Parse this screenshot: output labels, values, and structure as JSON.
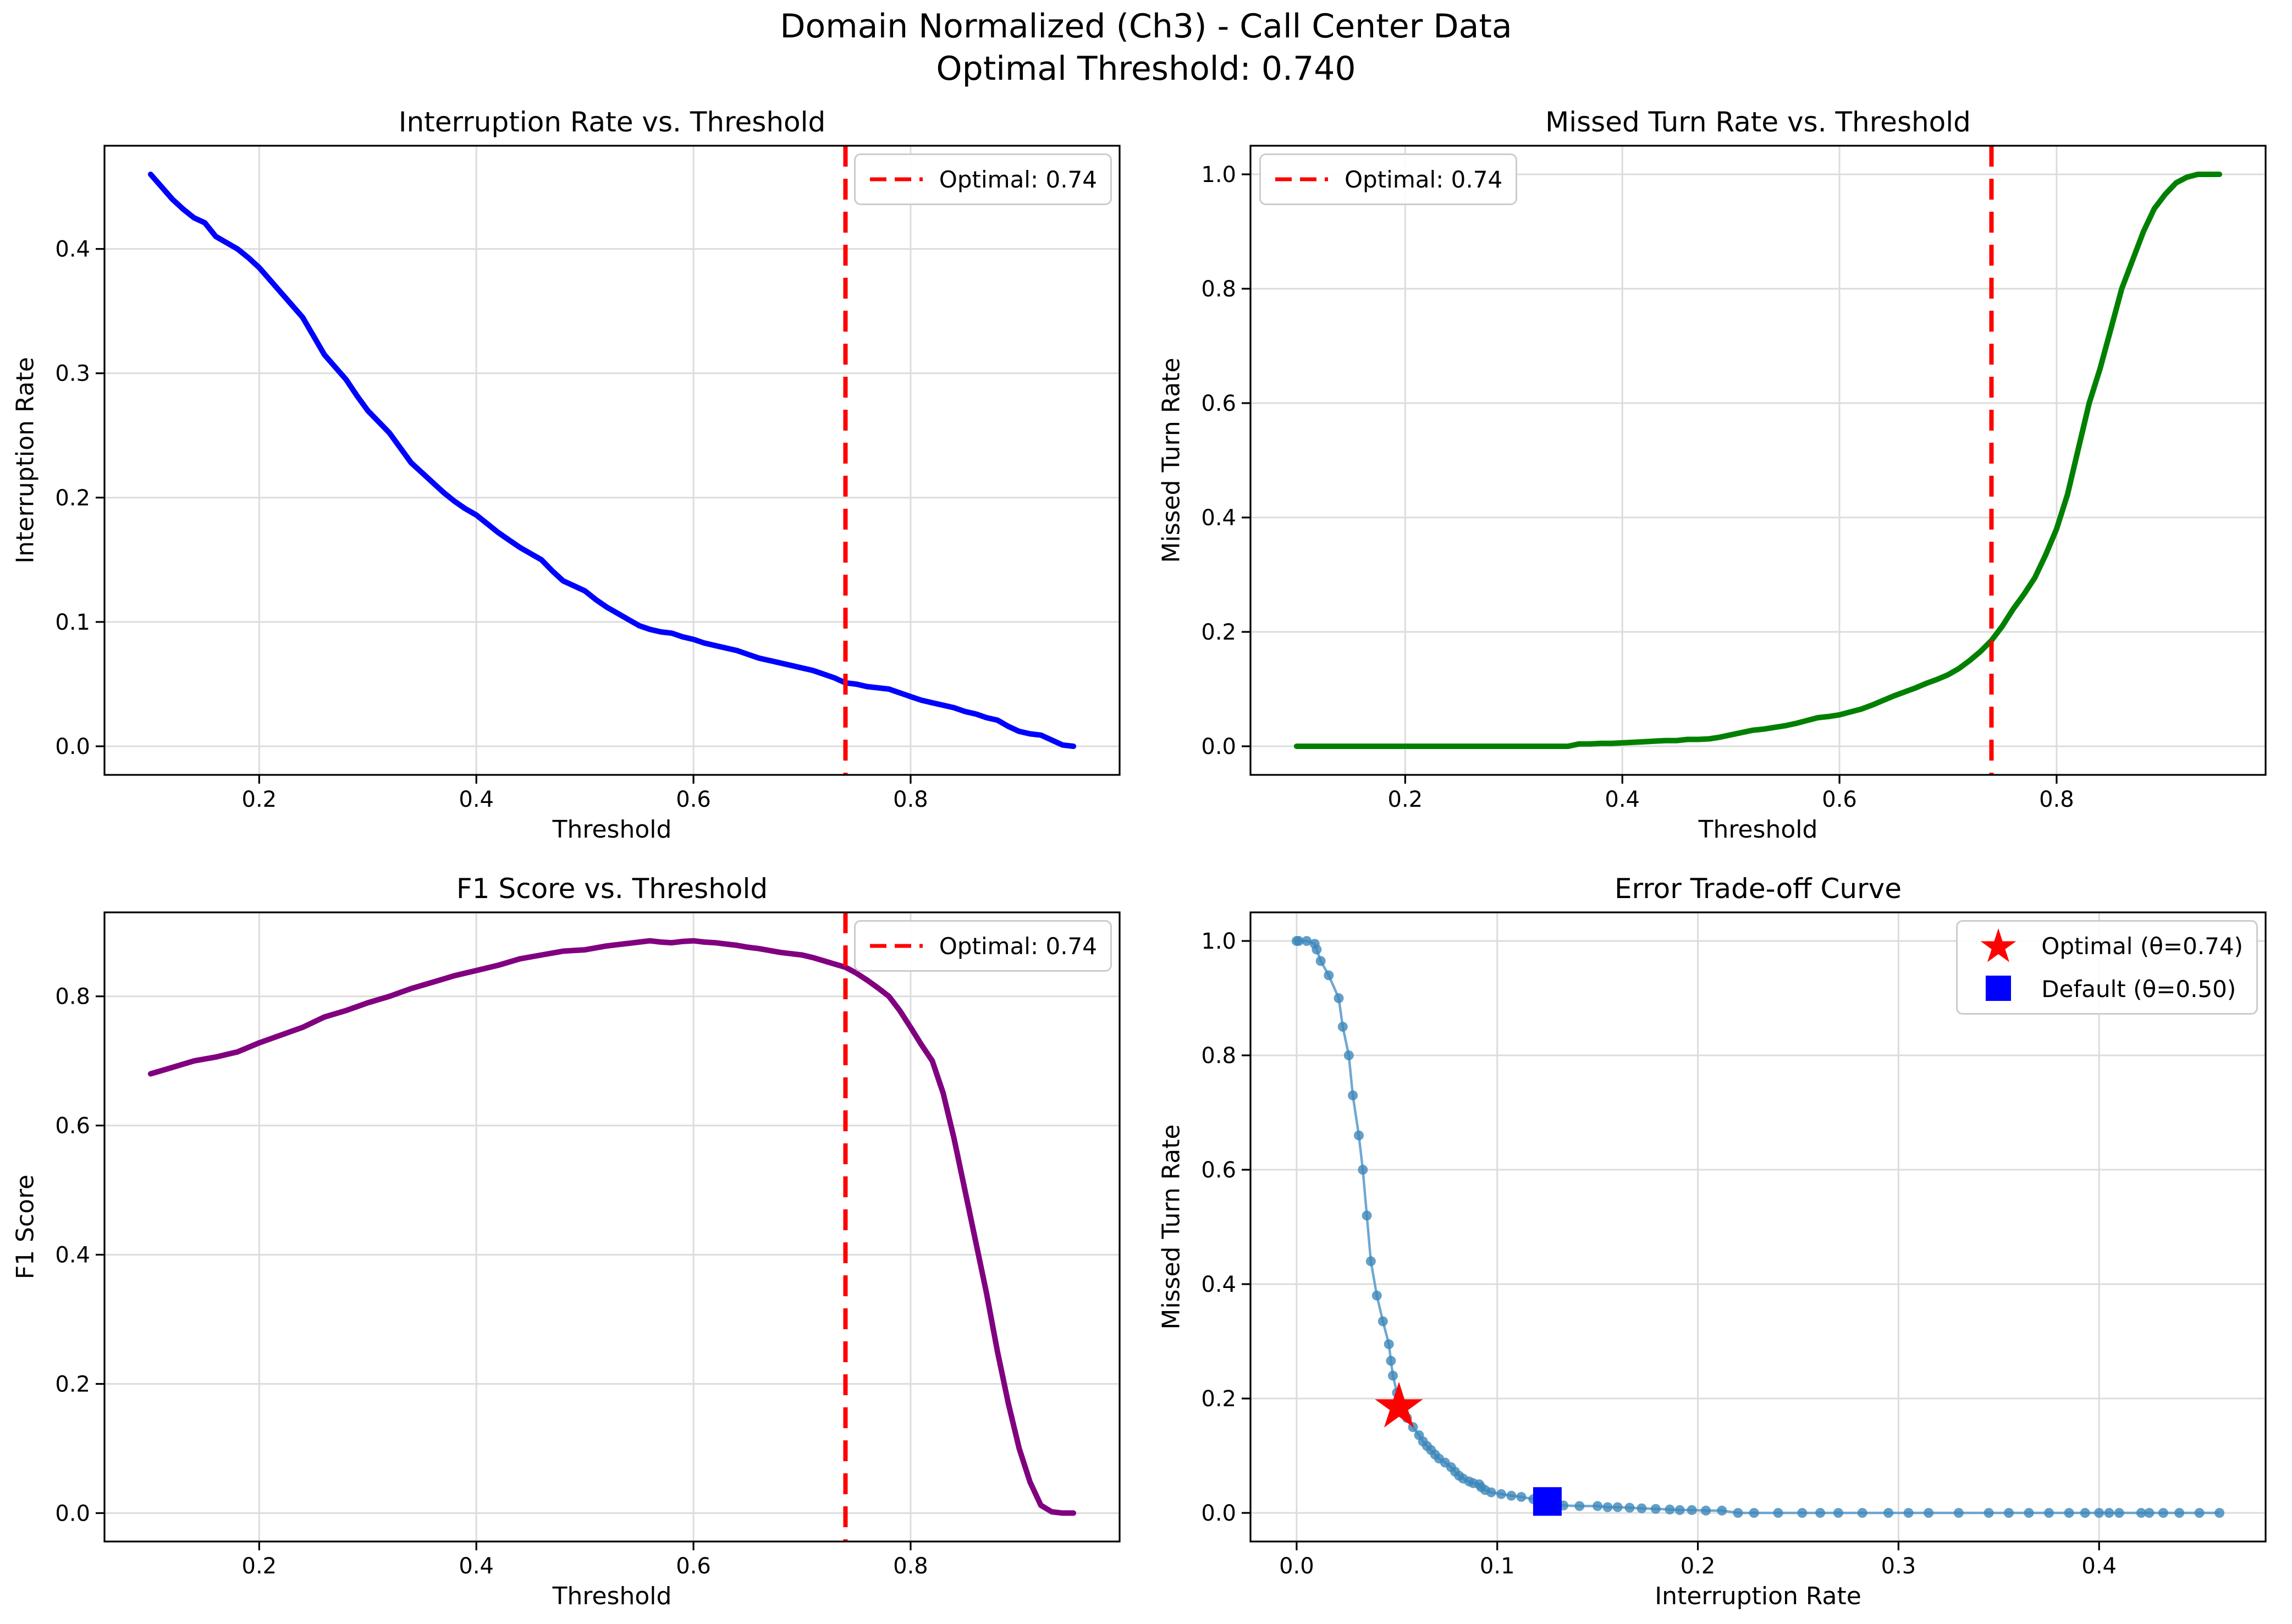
{
  "title": {
    "line1": "Domain Normalized (Ch3) - Call Center Data",
    "line2": "Optimal Threshold: 0.740"
  },
  "optimal_threshold": 0.74,
  "default_threshold": 0.5,
  "colors": {
    "interruption_line": "#0000ff",
    "missed_line": "#008000",
    "f1_line": "#800080",
    "optimal_vline": "#ff0000",
    "optimal_star": "#ff0000",
    "default_square": "#0000ff",
    "tradeoff_line": "#5f9fcd",
    "tradeoff_marker": "#3d87ba",
    "grid": "#dcdcdc"
  },
  "series_data": {
    "thresholds": [
      0.1,
      0.11,
      0.12,
      0.13,
      0.14,
      0.15,
      0.16,
      0.17,
      0.18,
      0.19,
      0.2,
      0.21,
      0.22,
      0.23,
      0.24,
      0.25,
      0.26,
      0.27,
      0.28,
      0.29,
      0.3,
      0.31,
      0.32,
      0.33,
      0.34,
      0.35,
      0.36,
      0.37,
      0.38,
      0.39,
      0.4,
      0.41,
      0.42,
      0.43,
      0.44,
      0.45,
      0.46,
      0.47,
      0.48,
      0.49,
      0.5,
      0.51,
      0.52,
      0.53,
      0.54,
      0.55,
      0.56,
      0.57,
      0.58,
      0.59,
      0.6,
      0.61,
      0.62,
      0.63,
      0.64,
      0.65,
      0.66,
      0.67,
      0.68,
      0.69,
      0.7,
      0.71,
      0.72,
      0.73,
      0.74,
      0.75,
      0.76,
      0.77,
      0.78,
      0.79,
      0.8,
      0.81,
      0.82,
      0.83,
      0.84,
      0.85,
      0.86,
      0.87,
      0.88,
      0.89,
      0.9,
      0.91,
      0.92,
      0.93,
      0.94,
      0.95
    ],
    "interruption_rate": [
      0.46,
      0.45,
      0.44,
      0.432,
      0.425,
      0.421,
      0.41,
      0.405,
      0.4,
      0.393,
      0.385,
      0.375,
      0.365,
      0.355,
      0.345,
      0.33,
      0.315,
      0.305,
      0.295,
      0.282,
      0.27,
      0.261,
      0.252,
      0.24,
      0.228,
      0.22,
      0.212,
      0.204,
      0.197,
      0.191,
      0.186,
      0.179,
      0.172,
      0.166,
      0.16,
      0.155,
      0.15,
      0.141,
      0.133,
      0.129,
      0.125,
      0.118,
      0.112,
      0.107,
      0.102,
      0.097,
      0.094,
      0.092,
      0.091,
      0.088,
      0.086,
      0.083,
      0.081,
      0.079,
      0.077,
      0.074,
      0.071,
      0.069,
      0.067,
      0.065,
      0.063,
      0.061,
      0.058,
      0.055,
      0.051,
      0.05,
      0.048,
      0.047,
      0.046,
      0.043,
      0.04,
      0.037,
      0.035,
      0.033,
      0.031,
      0.028,
      0.026,
      0.023,
      0.021,
      0.016,
      0.012,
      0.01,
      0.009,
      0.005,
      0.001,
      0.0
    ],
    "missed_turn_rate": [
      0.0,
      0.0,
      0.0,
      0.0,
      0.0,
      0.0,
      0.0,
      0.0,
      0.0,
      0.0,
      0.0,
      0.0,
      0.0,
      0.0,
      0.0,
      0.0,
      0.0,
      0.0,
      0.0,
      0.0,
      0.0,
      0.0,
      0.0,
      0.0,
      0.0,
      0.0,
      0.004,
      0.004,
      0.005,
      0.005,
      0.006,
      0.007,
      0.008,
      0.009,
      0.01,
      0.01,
      0.012,
      0.012,
      0.013,
      0.016,
      0.02,
      0.024,
      0.028,
      0.03,
      0.033,
      0.036,
      0.04,
      0.045,
      0.05,
      0.052,
      0.055,
      0.06,
      0.065,
      0.072,
      0.08,
      0.088,
      0.095,
      0.102,
      0.11,
      0.117,
      0.125,
      0.136,
      0.15,
      0.166,
      0.185,
      0.21,
      0.24,
      0.266,
      0.295,
      0.335,
      0.38,
      0.44,
      0.52,
      0.6,
      0.66,
      0.73,
      0.8,
      0.85,
      0.9,
      0.94,
      0.965,
      0.985,
      0.995,
      1.0,
      1.0,
      1.0
    ],
    "f1_score": [
      0.68,
      0.685,
      0.69,
      0.695,
      0.7,
      0.703,
      0.706,
      0.71,
      0.714,
      0.721,
      0.728,
      0.734,
      0.74,
      0.746,
      0.752,
      0.76,
      0.768,
      0.773,
      0.778,
      0.784,
      0.79,
      0.795,
      0.8,
      0.806,
      0.812,
      0.817,
      0.822,
      0.827,
      0.832,
      0.836,
      0.84,
      0.844,
      0.848,
      0.853,
      0.858,
      0.861,
      0.864,
      0.867,
      0.87,
      0.871,
      0.872,
      0.875,
      0.878,
      0.88,
      0.882,
      0.884,
      0.886,
      0.884,
      0.883,
      0.885,
      0.886,
      0.884,
      0.883,
      0.881,
      0.879,
      0.876,
      0.874,
      0.871,
      0.868,
      0.866,
      0.864,
      0.86,
      0.855,
      0.85,
      0.845,
      0.836,
      0.825,
      0.813,
      0.8,
      0.778,
      0.752,
      0.725,
      0.7,
      0.65,
      0.58,
      0.5,
      0.42,
      0.34,
      0.25,
      0.17,
      0.1,
      0.048,
      0.012,
      0.002,
      0.0,
      0.0
    ]
  },
  "chart_data": [
    {
      "type": "line",
      "title": "Interruption Rate vs. Threshold",
      "xlabel": "Threshold",
      "ylabel": "Interruption Rate",
      "x_key": "thresholds",
      "y_key": "interruption_rate",
      "color": "#0000ff",
      "xlim": [
        0.0575,
        0.9925
      ],
      "ylim": [
        -0.023,
        0.483
      ],
      "xticks": [
        0.2,
        0.4,
        0.6,
        0.8
      ],
      "yticks": [
        0.0,
        0.1,
        0.2,
        0.3,
        0.4
      ],
      "grid": true,
      "vline_x": 0.74,
      "legend_position": "top-right",
      "legend": [
        {
          "label": "Optimal: 0.74",
          "sample": "dash",
          "color": "#ff0000"
        }
      ]
    },
    {
      "type": "line",
      "title": "Missed Turn Rate vs. Threshold",
      "xlabel": "Threshold",
      "ylabel": "Missed Turn Rate",
      "x_key": "thresholds",
      "y_key": "missed_turn_rate",
      "color": "#008000",
      "xlim": [
        0.0575,
        0.9925
      ],
      "ylim": [
        -0.05,
        1.05
      ],
      "xticks": [
        0.2,
        0.4,
        0.6,
        0.8
      ],
      "yticks": [
        0.0,
        0.2,
        0.4,
        0.6,
        0.8,
        1.0
      ],
      "grid": true,
      "vline_x": 0.74,
      "legend_position": "top-left",
      "legend": [
        {
          "label": "Optimal: 0.74",
          "sample": "dash",
          "color": "#ff0000"
        }
      ]
    },
    {
      "type": "line",
      "title": "F1 Score vs. Threshold",
      "xlabel": "Threshold",
      "ylabel": "F1 Score",
      "x_key": "thresholds",
      "y_key": "f1_score",
      "color": "#800080",
      "xlim": [
        0.0575,
        0.9925
      ],
      "ylim": [
        -0.044,
        0.93
      ],
      "xticks": [
        0.2,
        0.4,
        0.6,
        0.8
      ],
      "yticks": [
        0.0,
        0.2,
        0.4,
        0.6,
        0.8
      ],
      "grid": true,
      "vline_x": 0.74,
      "legend_position": "top-right",
      "legend": [
        {
          "label": "Optimal: 0.74",
          "sample": "dash",
          "color": "#ff0000"
        }
      ]
    },
    {
      "type": "scatter",
      "title": "Error Trade-off Curve",
      "xlabel": "Interruption Rate",
      "ylabel": "Missed Turn Rate",
      "x_key": "interruption_rate",
      "y_key": "missed_turn_rate",
      "color": "#5f9fcd",
      "marker_color": "#3d87ba",
      "xlim": [
        -0.023,
        0.483
      ],
      "ylim": [
        -0.05,
        1.05
      ],
      "xticks": [
        0.0,
        0.1,
        0.2,
        0.3,
        0.4
      ],
      "yticks": [
        0.0,
        0.2,
        0.4,
        0.6,
        0.8,
        1.0
      ],
      "grid": true,
      "markers": [
        {
          "shape": "star",
          "x": 0.051,
          "y": 0.185,
          "color": "#ff0000",
          "size": 46
        },
        {
          "shape": "square",
          "x": 0.125,
          "y": 0.02,
          "color": "#0000ff",
          "size": 26
        }
      ],
      "legend_position": "top-right",
      "legend": [
        {
          "label": "Optimal (θ=0.74)",
          "sample": "star",
          "color": "#ff0000"
        },
        {
          "label": "Default (θ=0.50)",
          "sample": "square",
          "color": "#0000ff"
        }
      ]
    }
  ]
}
